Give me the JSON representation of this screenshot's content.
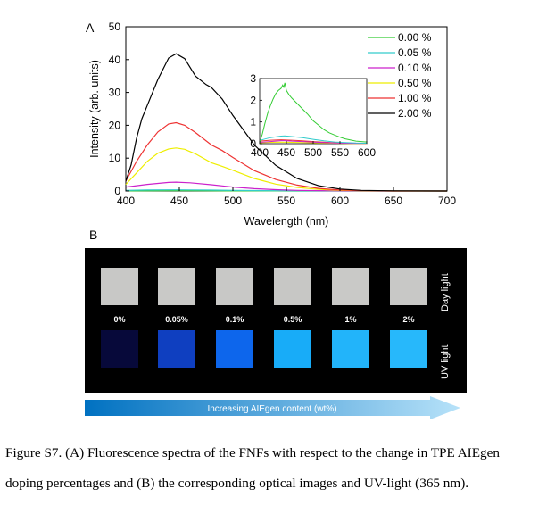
{
  "panel_labels": {
    "a": "A",
    "b": "B"
  },
  "chart_data": {
    "type": "line",
    "xlabel": "Wavelength (nm)",
    "ylabel": "Intensity (arb. units)",
    "xlim": [
      400,
      700
    ],
    "ylim": [
      0,
      50
    ],
    "xticks": [
      400,
      450,
      500,
      550,
      600,
      650,
      700
    ],
    "yticks": [
      0,
      10,
      20,
      30,
      40,
      50
    ],
    "legend_position": "top-right",
    "series": [
      {
        "name": "0.00 %",
        "color": "#33cc33",
        "x": [
          400,
          420,
          440,
          447,
          460,
          480,
          500,
          520,
          540,
          560,
          580,
          600,
          620,
          650,
          700
        ],
        "y": [
          0.03,
          0.05,
          0.08,
          0.08,
          0.07,
          0.05,
          0.04,
          0.03,
          0.02,
          0.01,
          0.01,
          0.01,
          0.0,
          0.0,
          0.0
        ]
      },
      {
        "name": "0.05 %",
        "color": "#33cccc",
        "x": [
          400,
          420,
          440,
          447,
          460,
          480,
          500,
          520,
          540,
          560,
          580,
          600,
          620,
          650,
          700
        ],
        "y": [
          0.2,
          0.3,
          0.35,
          0.35,
          0.33,
          0.28,
          0.2,
          0.13,
          0.08,
          0.05,
          0.03,
          0.02,
          0.01,
          0.0,
          0.0
        ]
      },
      {
        "name": "0.10 %",
        "color": "#cc22cc",
        "x": [
          400,
          420,
          440,
          447,
          460,
          480,
          500,
          520,
          540,
          560,
          580,
          600,
          620,
          650,
          700
        ],
        "y": [
          1.2,
          2.0,
          2.6,
          2.7,
          2.5,
          1.9,
          1.2,
          0.7,
          0.4,
          0.2,
          0.1,
          0.05,
          0.02,
          0.0,
          0.0
        ]
      },
      {
        "name": "0.50 %",
        "color": "#eeee00",
        "x": [
          400,
          410,
          420,
          430,
          440,
          447,
          455,
          465,
          480,
          490,
          500,
          520,
          540,
          560,
          580,
          600,
          620,
          650,
          700
        ],
        "y": [
          2,
          5.5,
          9,
          11.5,
          12.8,
          13.1,
          12.7,
          11.3,
          8.6,
          7.5,
          6.3,
          3.8,
          2.1,
          1.1,
          0.5,
          0.2,
          0.1,
          0.0,
          0.0
        ]
      },
      {
        "name": "1.00 %",
        "color": "#ee3333",
        "x": [
          400,
          410,
          420,
          430,
          440,
          447,
          455,
          465,
          480,
          490,
          500,
          520,
          540,
          560,
          580,
          600,
          620,
          650,
          700
        ],
        "y": [
          3,
          9,
          14,
          18,
          20.4,
          20.8,
          20,
          17.8,
          14,
          12.3,
          10.2,
          6.2,
          3.5,
          1.8,
          0.8,
          0.3,
          0.1,
          0.0,
          0.0
        ]
      },
      {
        "name": "2.00 %",
        "color": "#000000",
        "x": [
          400,
          405,
          410,
          415,
          420,
          430,
          440,
          447,
          455,
          465,
          475,
          480,
          490,
          500,
          510,
          520,
          540,
          560,
          580,
          600,
          620,
          650,
          700
        ],
        "y": [
          3,
          8,
          16,
          22,
          26,
          34,
          40.5,
          41.8,
          40.3,
          35,
          32.4,
          31.5,
          28,
          23,
          18.5,
          14,
          7.8,
          3.8,
          1.6,
          0.6,
          0.2,
          0.05,
          0.0
        ]
      }
    ],
    "inset": {
      "xlim": [
        400,
        600
      ],
      "ylim": [
        0,
        3
      ],
      "xticks": [
        400,
        450,
        500,
        550,
        600
      ],
      "yticks": [
        0,
        1,
        2,
        3
      ],
      "series": [
        {
          "name": "0.00 %",
          "color": "#33cc33",
          "x": [
            400,
            405,
            410,
            415,
            420,
            425,
            430,
            435,
            440,
            443,
            445,
            447,
            450,
            455,
            460,
            470,
            480,
            490,
            500,
            510,
            520,
            530,
            540,
            550,
            560,
            570,
            580,
            590,
            600
          ],
          "y": [
            0.05,
            0.45,
            0.95,
            1.4,
            1.75,
            2.05,
            2.3,
            2.45,
            2.55,
            2.7,
            2.6,
            2.8,
            2.45,
            2.25,
            2.1,
            1.85,
            1.6,
            1.35,
            1.05,
            0.85,
            0.65,
            0.5,
            0.4,
            0.3,
            0.22,
            0.17,
            0.12,
            0.1,
            0.08
          ]
        },
        {
          "name": "0.05 %",
          "color": "#33cccc",
          "x": [
            400,
            420,
            440,
            447,
            460,
            480,
            500,
            520,
            540,
            560,
            580,
            600
          ],
          "y": [
            0.15,
            0.28,
            0.35,
            0.36,
            0.33,
            0.28,
            0.2,
            0.13,
            0.08,
            0.05,
            0.03,
            0.02
          ]
        },
        {
          "name": "0.10 %",
          "color": "#cc22cc",
          "x": [
            400,
            420,
            440,
            447,
            460,
            480,
            500,
            520,
            540,
            560,
            580,
            600
          ],
          "y": [
            0.06,
            0.1,
            0.14,
            0.14,
            0.12,
            0.1,
            0.07,
            0.05,
            0.03,
            0.02,
            0.01,
            0.01
          ]
        },
        {
          "name": "0.50 %",
          "color": "#eeee00",
          "x": [
            400,
            420,
            440,
            460,
            480,
            500,
            520,
            540,
            560,
            580,
            600
          ],
          "y": [
            0.04,
            0.06,
            0.07,
            0.06,
            0.05,
            0.04,
            0.03,
            0.02,
            0.01,
            0.0,
            0.0
          ]
        },
        {
          "name": "1.00 %",
          "color": "#ee3333",
          "x": [
            400,
            420,
            440,
            460,
            480,
            500,
            520,
            540,
            560,
            580,
            600
          ],
          "y": [
            0.12,
            0.16,
            0.18,
            0.16,
            0.13,
            0.1,
            0.07,
            0.04,
            0.02,
            0.01,
            0.0
          ]
        }
      ]
    }
  },
  "panel_b": {
    "percent_labels": [
      "0%",
      "0.05%",
      "0.1%",
      "0.5%",
      "1%",
      "2%"
    ],
    "daylight_colors": [
      "#c8c8c6",
      "#c9c9c7",
      "#c8c8c6",
      "#c7c7c5",
      "#c9c9c7",
      "#c8c8c6"
    ],
    "uv_colors": [
      "#07093a",
      "#0f3fc0",
      "#0d66ec",
      "#18acf8",
      "#22b4fa",
      "#27b8fb"
    ],
    "day_light_label": "Day light",
    "uv_light_label": "UV light",
    "arrow_label": "Increasing AIEgen content (wt%)",
    "arrow_color_start": "#0071c1",
    "arrow_color_end": "#b7e2f9"
  },
  "caption": {
    "line1": "Figure S7. (A) Fluorescence spectra of the FNFs with respect to the change in TPE AIEgen",
    "line2": "doping percentages and (B) the corresponding optical images and UV-light (365 nm)."
  }
}
